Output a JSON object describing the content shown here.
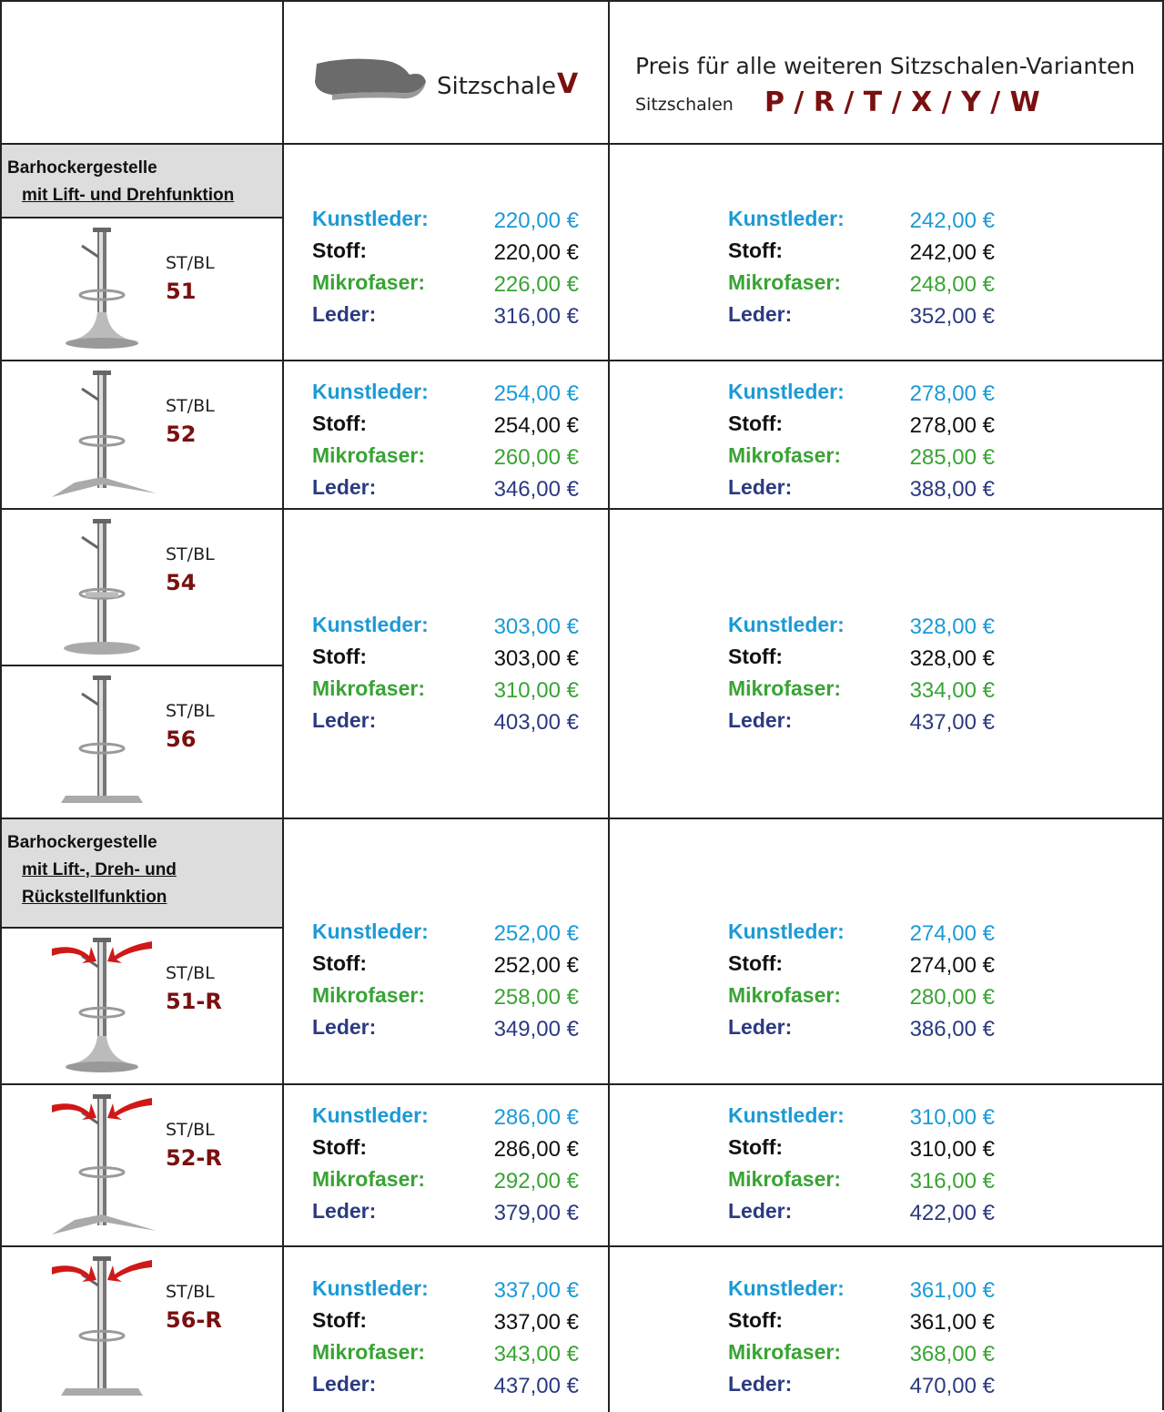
{
  "header": {
    "col_v": {
      "label": "Sitzschale",
      "letter": "V"
    },
    "col_other": {
      "title": "Preis für alle weiteren Sitzschalen-Varianten",
      "label": "Sitzschalen",
      "letters": "P / R / T / X / Y / W"
    }
  },
  "materials": [
    {
      "label": "Kunstleder:",
      "color": "#1b9ad6"
    },
    {
      "label": "Stoff:",
      "color": "#111111"
    },
    {
      "label": "Mikrofaser:",
      "color": "#3aa335"
    },
    {
      "label": "Leder:",
      "color": "#2b3a80"
    }
  ],
  "sections": [
    {
      "title": "Barhockergestelle",
      "subtitle_lines": [
        "mit Lift- und Drehfunktion"
      ],
      "groups": [
        {
          "models": [
            {
              "prefix": "ST/BL",
              "code": "51"
            }
          ],
          "prices_v": [
            "220,00 €",
            "220,00 €",
            "226,00 €",
            "316,00 €"
          ],
          "prices_other": [
            "242,00 €",
            "242,00 €",
            "248,00 €",
            "352,00 €"
          ]
        },
        {
          "models": [
            {
              "prefix": "ST/BL",
              "code": "52"
            }
          ],
          "prices_v": [
            "254,00 €",
            "254,00 €",
            "260,00 €",
            "346,00 €"
          ],
          "prices_other": [
            "278,00 €",
            "278,00 €",
            "285,00 €",
            "388,00 €"
          ]
        },
        {
          "models": [
            {
              "prefix": "ST/BL",
              "code": "54"
            },
            {
              "prefix": "ST/BL",
              "code": "56"
            }
          ],
          "prices_v": [
            "303,00 €",
            "303,00 €",
            "310,00 €",
            "403,00 €"
          ],
          "prices_other": [
            "328,00 €",
            "328,00 €",
            "334,00 €",
            "437,00 €"
          ]
        }
      ]
    },
    {
      "title": "Barhockergestelle",
      "subtitle_lines": [
        "mit Lift-, Dreh-  und",
        "Rückstellfunktion"
      ],
      "groups": [
        {
          "models": [
            {
              "prefix": "ST/BL",
              "code": "51-R"
            }
          ],
          "prices_v": [
            "252,00 €",
            "252,00 €",
            "258,00 €",
            "349,00 €"
          ],
          "prices_other": [
            "274,00 €",
            "274,00 €",
            "280,00 €",
            "386,00 €"
          ]
        },
        {
          "models": [
            {
              "prefix": "ST/BL",
              "code": "52-R"
            }
          ],
          "prices_v": [
            "286,00 €",
            "286,00 €",
            "292,00 €",
            "379,00 €"
          ],
          "prices_other": [
            "310,00 €",
            "310,00 €",
            "316,00 €",
            "422,00 €"
          ]
        },
        {
          "models": [
            {
              "prefix": "ST/BL",
              "code": "56-R"
            }
          ],
          "prices_v": [
            "337,00 €",
            "337,00 €",
            "343,00 €",
            "437,00 €"
          ],
          "prices_other": [
            "361,00 €",
            "361,00 €",
            "368,00 €",
            "470,00 €"
          ]
        }
      ]
    }
  ]
}
